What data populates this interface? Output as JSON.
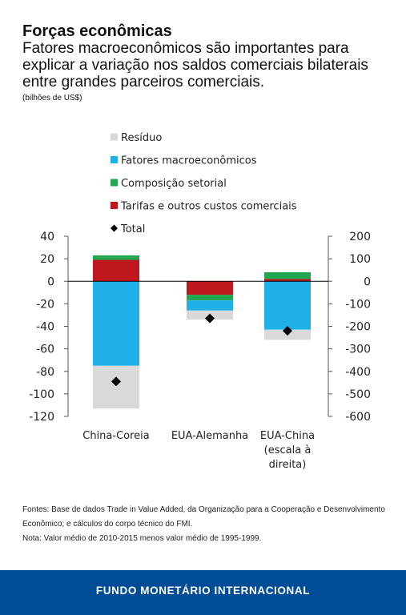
{
  "header": {
    "title": "Forças econômicas",
    "subtitle": "Fatores macroeconômicos são importantes para explicar a variação nos saldos comerciais bilaterais entre grandes parceiros comerciais.",
    "units": "(bilhões de US$)"
  },
  "chart_data": {
    "type": "bar",
    "stacked": true,
    "categories": [
      [
        "China-Coreia"
      ],
      [
        "EUA-Alemanha"
      ],
      [
        "EUA-China",
        "(escala à",
        "direita)"
      ]
    ],
    "y_left": {
      "range": [
        -120,
        40
      ],
      "ticks": [
        "40",
        "20",
        "0",
        "-20",
        "-40",
        "-60",
        "-80",
        "-100",
        "-120"
      ]
    },
    "y_right": {
      "range": [
        -600,
        200
      ],
      "ticks": [
        "200",
        "100",
        "0",
        "-100",
        "-200",
        "-300",
        "-400",
        "-500",
        "-600"
      ]
    },
    "legend": [
      {
        "key": "residuo",
        "label": "Resíduo",
        "color": "#d9d9d9",
        "marker": "square"
      },
      {
        "key": "macro",
        "label": "Fatores macroeconômicos",
        "color": "#1eb0e6",
        "marker": "square"
      },
      {
        "key": "setorial",
        "label": "Composição setorial",
        "color": "#22a650",
        "marker": "square"
      },
      {
        "key": "tarifas",
        "label": "Tarifas e outros custos comerciais",
        "color": "#c0161d",
        "marker": "square"
      },
      {
        "key": "total",
        "label": "Total",
        "color": "#000000",
        "marker": "diamond"
      }
    ],
    "data": [
      {
        "axis": "left",
        "tarifas": 19,
        "setorial": 4,
        "macro": -75,
        "residuo": -38,
        "total": -89
      },
      {
        "axis": "left",
        "tarifas": -12,
        "setorial": -5,
        "macro": -9,
        "residuo": -8,
        "total": -33
      },
      {
        "axis": "right",
        "tarifas": 10,
        "setorial": 30,
        "macro": -215,
        "residuo": -45,
        "total": -220
      }
    ]
  },
  "notes": {
    "sources": "Fontes: Base de dados Trade in Value Added, da Organização para a Cooperação e Desenvolvimento Econômico; e cálculos do corpo técnico do FMI.",
    "note": "Nota: Valor médio de 2010-2015 menos valor médio de 1995-1999."
  },
  "footer": {
    "label": "FUNDO MONETÁRIO INTERNACIONAL"
  }
}
